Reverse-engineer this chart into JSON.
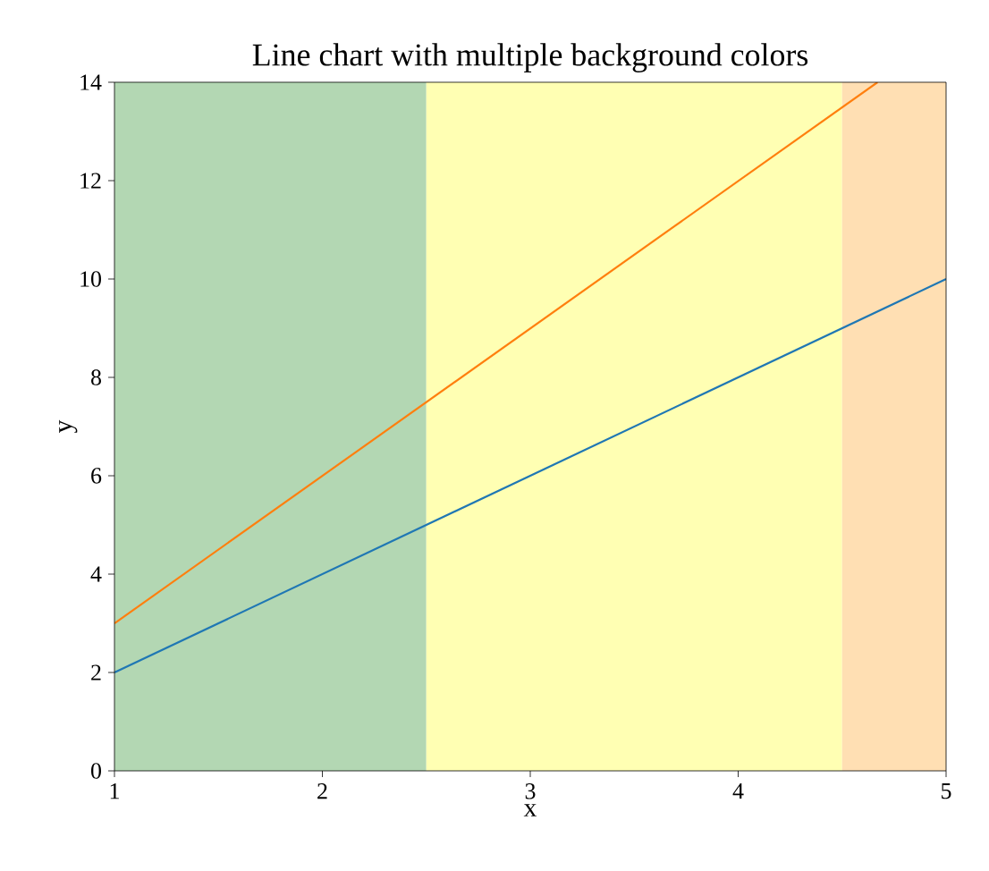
{
  "chart_data": {
    "type": "line",
    "title": "Line chart with multiple background colors",
    "xlabel": "x",
    "ylabel": "y",
    "x": [
      1,
      5
    ],
    "series": [
      {
        "color": "#1f77b4",
        "values": [
          2,
          10
        ]
      },
      {
        "color": "#ff7f0e",
        "x": [
          1,
          4.67
        ],
        "values": [
          3,
          14
        ]
      }
    ],
    "xlim": [
      1,
      5
    ],
    "ylim": [
      0,
      14
    ],
    "xticks": [
      1,
      2,
      3,
      4,
      5
    ],
    "yticks": [
      0,
      2,
      4,
      6,
      8,
      10,
      12,
      14
    ],
    "bands": [
      {
        "axis": "x",
        "from": 1,
        "to": 2.5,
        "color": "#b3d7b3"
      },
      {
        "axis": "x",
        "from": 2.5,
        "to": 4.5,
        "color": "#ffffb3"
      },
      {
        "axis": "x",
        "from": 4.5,
        "to": 5,
        "color": "#ffdfb3"
      }
    ],
    "grid": false,
    "marker": "none",
    "line_style": "solid"
  }
}
